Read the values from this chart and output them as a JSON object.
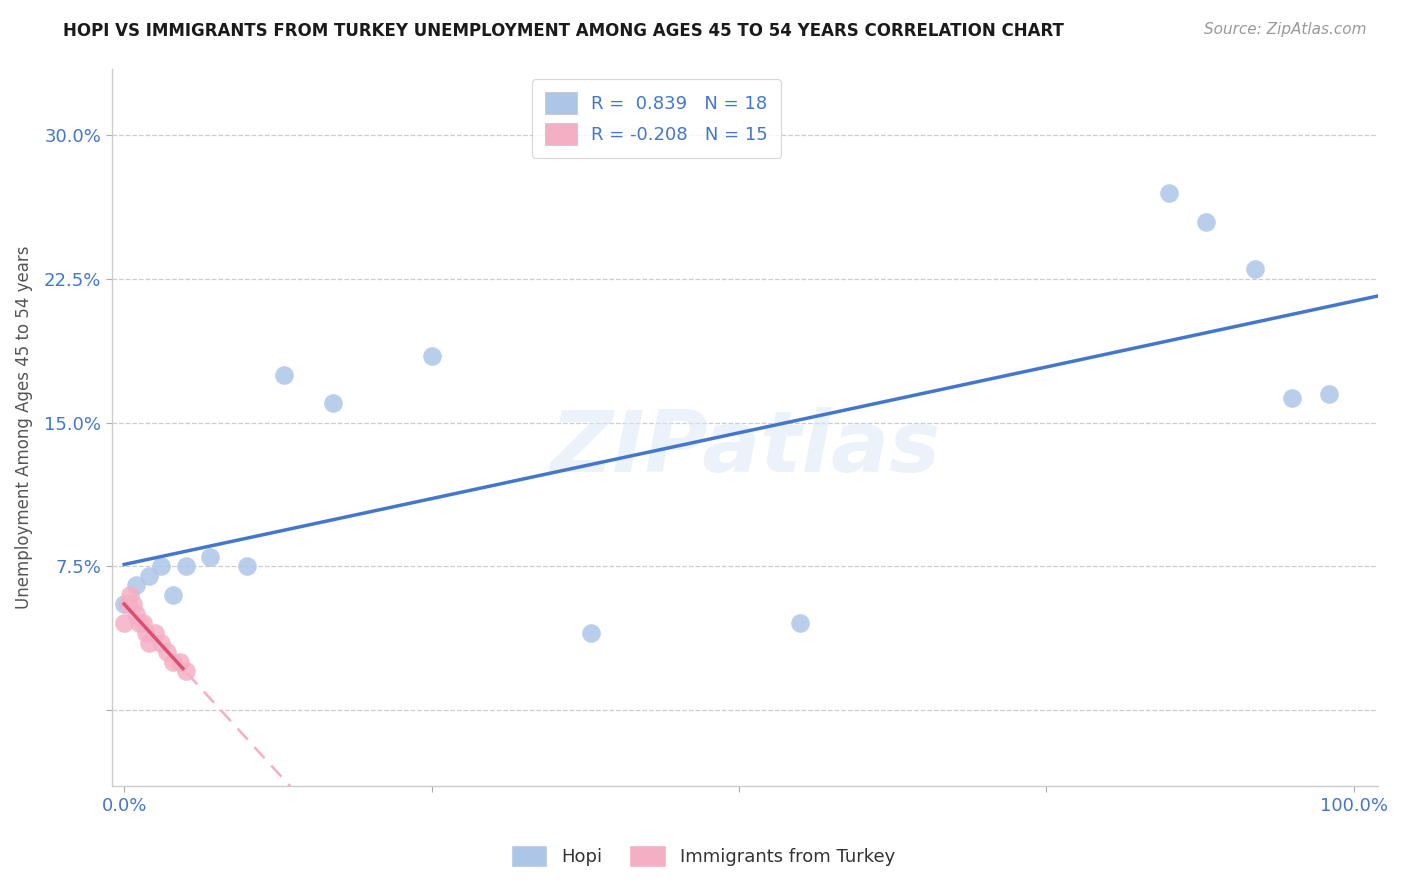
{
  "title": "HOPI VS IMMIGRANTS FROM TURKEY UNEMPLOYMENT AMONG AGES 45 TO 54 YEARS CORRELATION CHART",
  "source_text": "Source: ZipAtlas.com",
  "ylabel": "Unemployment Among Ages 45 to 54 years",
  "xlim": [
    -0.01,
    1.02
  ],
  "ylim": [
    -0.04,
    0.335
  ],
  "xtick_vals": [
    0.0,
    0.25,
    0.5,
    0.75,
    1.0
  ],
  "xtick_labels": [
    "0.0%",
    "",
    "",
    "",
    "100.0%"
  ],
  "ytick_vals": [
    0.0,
    0.075,
    0.15,
    0.225,
    0.3
  ],
  "ytick_labels": [
    "",
    "7.5%",
    "15.0%",
    "22.5%",
    "30.0%"
  ],
  "hopi_R": 0.839,
  "hopi_N": 18,
  "turkey_R": -0.208,
  "turkey_N": 15,
  "hopi_dot_color": "#adc6e8",
  "turkey_dot_color": "#f5afc4",
  "hopi_line_color": "#4477cc",
  "turkey_line_solid_color": "#d94f70",
  "turkey_line_dash_color": "#f5afc4",
  "watermark": "ZIPatlas",
  "hopi_x": [
    0.0,
    0.01,
    0.02,
    0.03,
    0.04,
    0.05,
    0.07,
    0.1,
    0.13,
    0.17,
    0.25,
    0.38,
    0.55,
    0.85,
    0.88,
    0.92,
    0.95,
    0.98
  ],
  "hopi_y": [
    0.055,
    0.065,
    0.07,
    0.075,
    0.06,
    0.075,
    0.08,
    0.075,
    0.175,
    0.16,
    0.185,
    0.04,
    0.045,
    0.27,
    0.255,
    0.23,
    0.163,
    0.165
  ],
  "turkey_x": [
    0.0,
    0.003,
    0.005,
    0.007,
    0.01,
    0.012,
    0.015,
    0.018,
    0.02,
    0.025,
    0.03,
    0.035,
    0.04,
    0.045,
    0.05
  ],
  "turkey_y": [
    0.045,
    0.055,
    0.06,
    0.055,
    0.05,
    0.045,
    0.045,
    0.04,
    0.035,
    0.04,
    0.035,
    0.03,
    0.025,
    0.025,
    0.02
  ]
}
